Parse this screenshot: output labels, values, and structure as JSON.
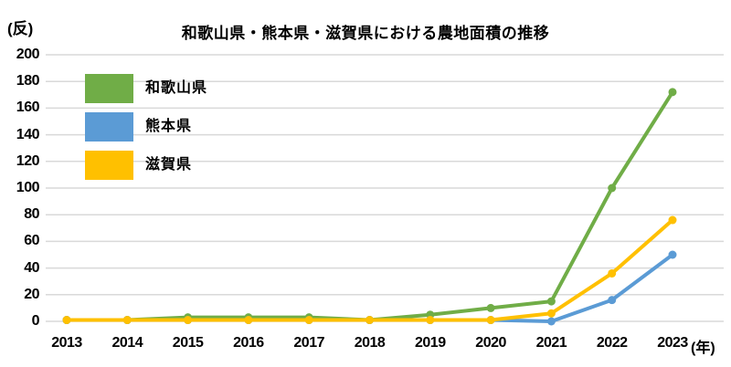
{
  "chart_data": {
    "type": "line",
    "title": "和歌山県・熊本県・滋賀県における農地面積の推移",
    "y_axis_unit": "(反)",
    "x_axis_unit": "(年)",
    "categories": [
      2013,
      2014,
      2015,
      2016,
      2017,
      2018,
      2019,
      2020,
      2021,
      2022,
      2023
    ],
    "y_ticks": [
      0,
      20,
      40,
      60,
      80,
      100,
      120,
      140,
      160,
      180,
      200
    ],
    "ylim": [
      0,
      200
    ],
    "grid": true,
    "legend_position": "top-left-inside",
    "series": [
      {
        "name": "和歌山県",
        "color": "#70AD47",
        "values": [
          1,
          1,
          3,
          3,
          3,
          1,
          5,
          10,
          15,
          100,
          172
        ]
      },
      {
        "name": "熊本県",
        "color": "#5B9BD5",
        "values": [
          1,
          1,
          1,
          1,
          1,
          1,
          1,
          1,
          0,
          16,
          50
        ]
      },
      {
        "name": "滋賀県",
        "color": "#FFC000",
        "values": [
          1,
          1,
          1,
          1,
          1,
          1,
          1,
          1,
          6,
          36,
          76
        ]
      }
    ]
  },
  "colors": {
    "grid": "#D9D9D9",
    "text": "#000000",
    "background": "#FFFFFF"
  }
}
